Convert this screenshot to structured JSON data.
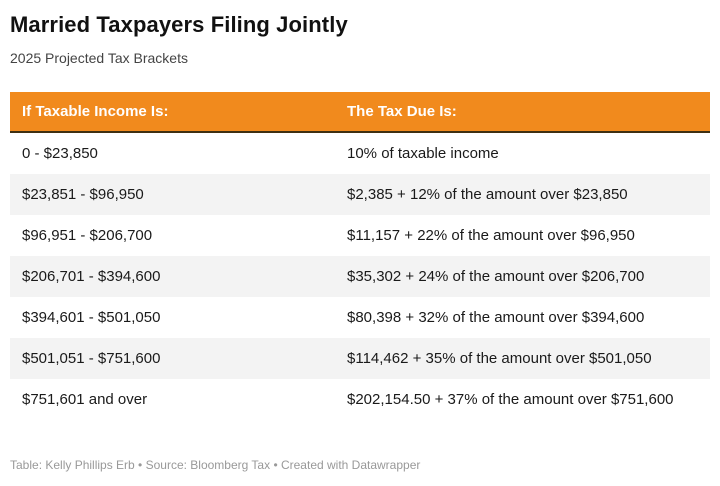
{
  "accent_color": "#f18a1d",
  "stripe_color": "#f3f3f3",
  "header": {
    "title": "Married Taxpayers Filing Jointly",
    "subtitle": "2025 Projected Tax Brackets"
  },
  "table": {
    "columns": [
      "If Taxable Income Is:",
      "The Tax Due Is:"
    ],
    "rows": [
      [
        "0 - $23,850",
        "10% of taxable income"
      ],
      [
        "$23,851 - $96,950",
        "$2,385 + 12% of the amount over $23,850"
      ],
      [
        "$96,951 - $206,700",
        "$11,157 + 22% of the amount over $96,950"
      ],
      [
        "$206,701 - $394,600",
        "$35,302 + 24% of the amount over $206,700"
      ],
      [
        "$394,601 - $501,050",
        "$80,398 + 32% of the amount over $394,600"
      ],
      [
        "$501,051 - $751,600",
        "$114,462 + 35% of the amount over $501,050"
      ],
      [
        "$751,601 and over",
        "$202,154.50 + 37% of the amount over $751,600"
      ]
    ]
  },
  "footer": {
    "text": "Table: Kelly Phillips Erb • Source: Bloomberg Tax • Created with Datawrapper"
  },
  "chart_data": {
    "type": "table",
    "title": "Married Taxpayers Filing Jointly",
    "subtitle": "2025 Projected Tax Brackets",
    "columns": [
      "If Taxable Income Is:",
      "The Tax Due Is:"
    ],
    "rows": [
      [
        "0 - $23,850",
        "10% of taxable income"
      ],
      [
        "$23,851 - $96,950",
        "$2,385 + 12% of the amount over $23,850"
      ],
      [
        "$96,951 - $206,700",
        "$11,157 + 22% of the amount over $96,950"
      ],
      [
        "$206,701 - $394,600",
        "$35,302 + 24% of the amount over $206,700"
      ],
      [
        "$394,601 - $501,050",
        "$80,398 + 32% of the amount over $394,600"
      ],
      [
        "$501,051 - $751,600",
        "$114,462 + 35% of the amount over $501,050"
      ],
      [
        "$751,601 and over",
        "$202,154.50 + 37% of the amount over $751,600"
      ]
    ],
    "layout_hints": {
      "header_background": "#f18a1d",
      "header_text_color": "#ffffff",
      "row_striping": "alternating white and light gray, first row white",
      "grid": "off"
    }
  }
}
